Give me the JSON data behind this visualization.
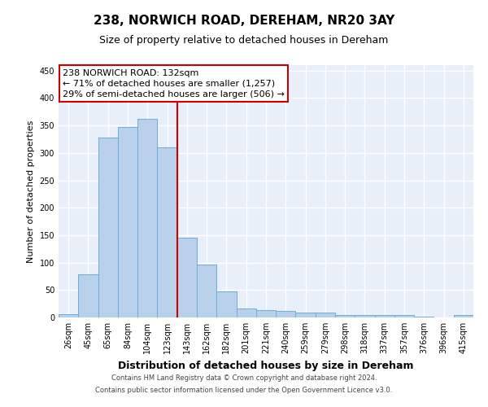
{
  "title1": "238, NORWICH ROAD, DEREHAM, NR20 3AY",
  "title2": "Size of property relative to detached houses in Dereham",
  "xlabel": "Distribution of detached houses by size in Dereham",
  "ylabel": "Number of detached properties",
  "categories": [
    "26sqm",
    "45sqm",
    "65sqm",
    "84sqm",
    "104sqm",
    "123sqm",
    "143sqm",
    "162sqm",
    "182sqm",
    "201sqm",
    "221sqm",
    "240sqm",
    "259sqm",
    "279sqm",
    "298sqm",
    "318sqm",
    "337sqm",
    "357sqm",
    "376sqm",
    "396sqm",
    "415sqm"
  ],
  "values": [
    6,
    78,
    328,
    347,
    362,
    310,
    145,
    97,
    47,
    17,
    14,
    12,
    9,
    9,
    4,
    5,
    4,
    4,
    1,
    0,
    4
  ],
  "bar_color": "#b8d0ea",
  "bar_edge_color": "#6aaed6",
  "vline_x": 5.5,
  "annotation_text1": "238 NORWICH ROAD: 132sqm",
  "annotation_text2": "← 71% of detached houses are smaller (1,257)",
  "annotation_text3": "29% of semi-detached houses are larger (506) →",
  "annotation_box_color": "#ffffff",
  "annotation_box_edge": "#cc0000",
  "vline_color": "#cc0000",
  "footer1": "Contains HM Land Registry data © Crown copyright and database right 2024.",
  "footer2": "Contains public sector information licensed under the Open Government Licence v3.0.",
  "ylim": [
    0,
    460
  ],
  "yticks": [
    0,
    50,
    100,
    150,
    200,
    250,
    300,
    350,
    400,
    450
  ],
  "background_color": "#e8eff8",
  "grid_color": "#ffffff",
  "title1_fontsize": 11,
  "title2_fontsize": 9,
  "xlabel_fontsize": 9,
  "ylabel_fontsize": 8,
  "tick_fontsize": 7,
  "footer_fontsize": 6,
  "ann_fontsize": 8
}
